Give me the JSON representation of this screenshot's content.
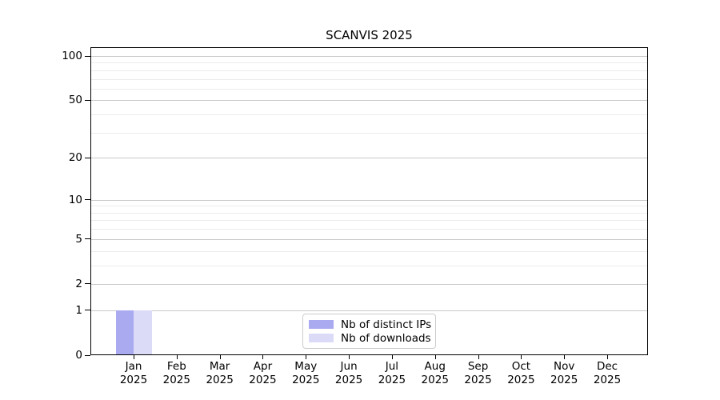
{
  "chart_data": {
    "type": "bar",
    "title": "SCANVIS 2025",
    "categories": [
      {
        "month": "Jan",
        "year": "2025"
      },
      {
        "month": "Feb",
        "year": "2025"
      },
      {
        "month": "Mar",
        "year": "2025"
      },
      {
        "month": "Apr",
        "year": "2025"
      },
      {
        "month": "May",
        "year": "2025"
      },
      {
        "month": "Jun",
        "year": "2025"
      },
      {
        "month": "Jul",
        "year": "2025"
      },
      {
        "month": "Aug",
        "year": "2025"
      },
      {
        "month": "Sep",
        "year": "2025"
      },
      {
        "month": "Oct",
        "year": "2025"
      },
      {
        "month": "Nov",
        "year": "2025"
      },
      {
        "month": "Dec",
        "year": "2025"
      }
    ],
    "series": [
      {
        "name": "Nb of distinct IPs",
        "color": "#aaaaf0",
        "values": [
          1,
          0,
          0,
          0,
          0,
          0,
          0,
          0,
          0,
          0,
          0,
          0
        ]
      },
      {
        "name": "Nb of downloads",
        "color": "#dbdbf8",
        "values": [
          1,
          0,
          0,
          0,
          0,
          0,
          0,
          0,
          0,
          0,
          0,
          0
        ]
      }
    ],
    "xlabel": "",
    "ylabel": "",
    "y_axis": {
      "scale": "log1p",
      "ticks": [
        0,
        1,
        2,
        5,
        10,
        20,
        50,
        100
      ],
      "tick_labels": [
        "0",
        "1",
        "2",
        "5",
        "10",
        "20",
        "50",
        "100"
      ],
      "minor_ticks": [
        3,
        4,
        6,
        7,
        8,
        9,
        30,
        40,
        60,
        70,
        80,
        90
      ],
      "ylim": [
        0,
        115
      ]
    },
    "grid": {
      "visible": true,
      "major_color": "#c9c9c9",
      "minor_color": "#ebebeb"
    },
    "legend": {
      "position": "lower center"
    }
  }
}
